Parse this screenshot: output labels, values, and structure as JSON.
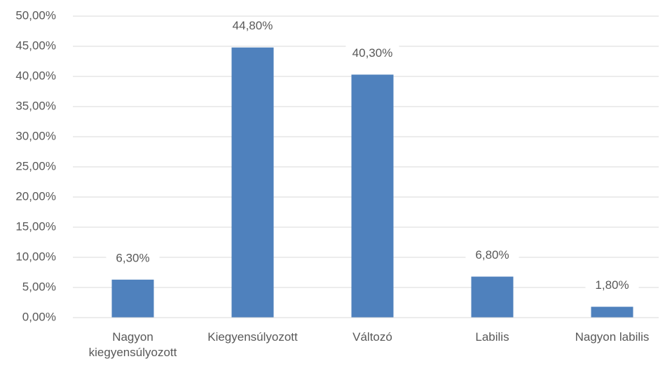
{
  "chart_data": {
    "type": "bar",
    "categories": [
      "Nagyon kiegyensúlyozott",
      "Kiegyensúlyozott",
      "Változó",
      "Labilis",
      "Nagyon labilis"
    ],
    "values": [
      6.3,
      44.8,
      40.3,
      6.8,
      1.8
    ],
    "value_labels": [
      "6,30%",
      "44,80%",
      "40,30%",
      "6,80%",
      "1,80%"
    ],
    "color": "#4f81bd",
    "ylim": [
      0,
      50
    ],
    "yticks": [
      {
        "value": 0,
        "label": "0,00%"
      },
      {
        "value": 5,
        "label": "5,00%"
      },
      {
        "value": 10,
        "label": "10,00%"
      },
      {
        "value": 15,
        "label": "15,00%"
      },
      {
        "value": 20,
        "label": "20,00%"
      },
      {
        "value": 25,
        "label": "25,00%"
      },
      {
        "value": 30,
        "label": "30,00%"
      },
      {
        "value": 35,
        "label": "35,00%"
      },
      {
        "value": 40,
        "label": "40,00%"
      },
      {
        "value": 45,
        "label": "45,00%"
      },
      {
        "value": 50,
        "label": "50,00%"
      }
    ],
    "grid": true
  }
}
